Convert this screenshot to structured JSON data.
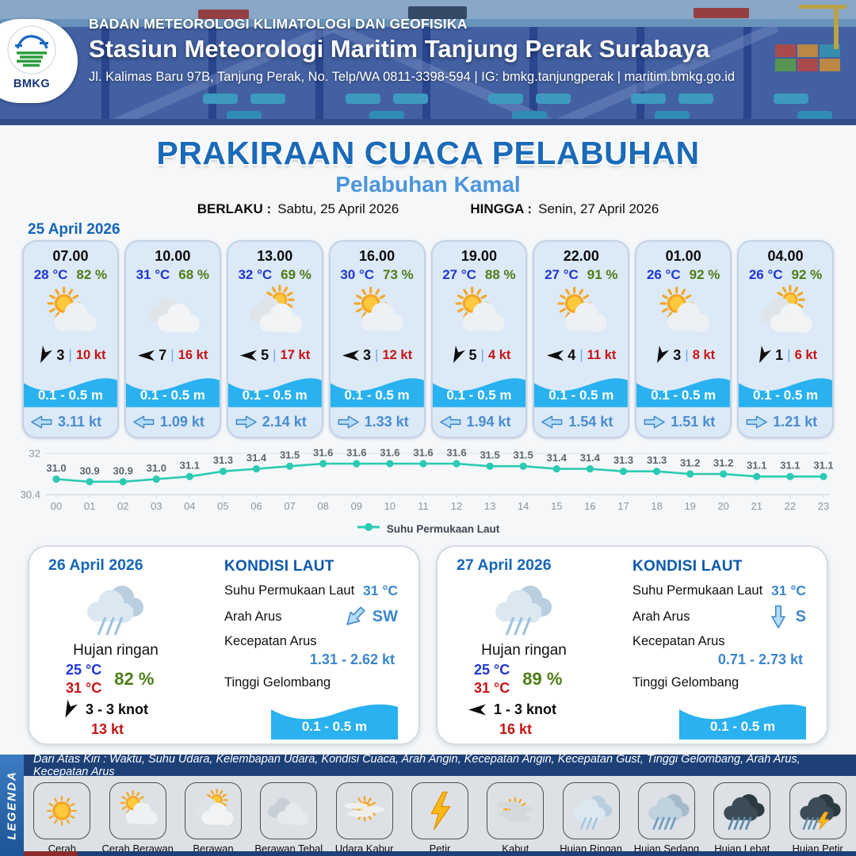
{
  "header": {
    "org": "BADAN METEOROLOGI KLIMATOLOGI DAN GEOFISIKA",
    "station": "Stasiun Meteorologi Maritim Tanjung Perak Surabaya",
    "address": "Jl. Kalimas Baru 97B, Tanjung Perak, No. Telp/WA 0811-3398-594 | IG: bmkg.tanjungperak | maritim.bmkg.go.id",
    "logo_text": "BMKG"
  },
  "title": {
    "main": "PRAKIRAAN CUACA PELABUHAN",
    "subtitle": "Pelabuhan Kamal",
    "berlaku_label": "BERLAKU :",
    "berlaku_value": "Sabtu, 25 April 2026",
    "hingga_label": "HINGGA :",
    "hingga_value": "Senin, 27 April 2026"
  },
  "forecast": {
    "date": "25 April 2026",
    "wind_separator": "|",
    "cards": [
      {
        "time": "07.00",
        "temp": "28 °C",
        "humidity": "82 %",
        "icon": "cerah-berawan",
        "wind_dir_deg": 115,
        "wind_num": "3",
        "wind_speed": "10 kt",
        "wave": "0.1 - 0.5 m",
        "current_dir": "left",
        "current": "3.11 kt"
      },
      {
        "time": "10.00",
        "temp": "31 °C",
        "humidity": "68 %",
        "icon": "berawan",
        "wind_dir_deg": 180,
        "wind_num": "7",
        "wind_speed": "16 kt",
        "wave": "0.1 - 0.5 m",
        "current_dir": "left",
        "current": "1.09 kt"
      },
      {
        "time": "13.00",
        "temp": "32 °C",
        "humidity": "69 %",
        "icon": "berawan-sun",
        "wind_dir_deg": 180,
        "wind_num": "5",
        "wind_speed": "17 kt",
        "wave": "0.1 - 0.5 m",
        "current_dir": "right",
        "current": "2.14 kt"
      },
      {
        "time": "16.00",
        "temp": "30 °C",
        "humidity": "73 %",
        "icon": "cerah-berawan",
        "wind_dir_deg": 180,
        "wind_num": "3",
        "wind_speed": "12 kt",
        "wave": "0.1 - 0.5 m",
        "current_dir": "right",
        "current": "1.33 kt"
      },
      {
        "time": "19.00",
        "temp": "27 °C",
        "humidity": "88 %",
        "icon": "cerah-berawan",
        "wind_dir_deg": 115,
        "wind_num": "5",
        "wind_speed": "4 kt",
        "wave": "0.1 - 0.5 m",
        "current_dir": "left",
        "current": "1.94 kt"
      },
      {
        "time": "22.00",
        "temp": "27 °C",
        "humidity": "91 %",
        "icon": "cerah-berawan",
        "wind_dir_deg": 180,
        "wind_num": "4",
        "wind_speed": "11 kt",
        "wave": "0.1 - 0.5 m",
        "current_dir": "left",
        "current": "1.54 kt"
      },
      {
        "time": "01.00",
        "temp": "26 °C",
        "humidity": "92 %",
        "icon": "cerah-berawan",
        "wind_dir_deg": 115,
        "wind_num": "3",
        "wind_speed": "8 kt",
        "wave": "0.1 - 0.5 m",
        "current_dir": "right",
        "current": "1.51 kt"
      },
      {
        "time": "04.00",
        "temp": "26 °C",
        "humidity": "92 %",
        "icon": "berawan-sun",
        "wind_dir_deg": 115,
        "wind_num": "1",
        "wind_speed": "6 kt",
        "wave": "0.1 - 0.5 m",
        "current_dir": "right",
        "current": "1.21 kt"
      }
    ]
  },
  "chart_data": {
    "type": "line",
    "x": [
      "00",
      "01",
      "02",
      "03",
      "04",
      "05",
      "06",
      "07",
      "08",
      "09",
      "10",
      "11",
      "12",
      "13",
      "14",
      "15",
      "16",
      "17",
      "18",
      "19",
      "20",
      "21",
      "22",
      "23"
    ],
    "series": [
      {
        "name": "Suhu Permukaan Laut",
        "values": [
          31.0,
          30.9,
          30.9,
          31.0,
          31.1,
          31.3,
          31.4,
          31.5,
          31.6,
          31.6,
          31.6,
          31.6,
          31.6,
          31.5,
          31.5,
          31.4,
          31.4,
          31.3,
          31.3,
          31.2,
          31.2,
          31.1,
          31.1,
          31.1
        ]
      }
    ],
    "ylim": [
      30.4,
      32
    ],
    "yticks": [
      32,
      30.4
    ],
    "line_color": "#2bcab2",
    "grid": true,
    "legend_position": "bottom"
  },
  "day_panels": [
    {
      "date": "26 April 2026",
      "condition": "Hujan ringan",
      "icon": "hujan-ringan",
      "temp_min": "25 °C",
      "temp_max": "31 °C",
      "humidity": "82 %",
      "wind_dir_deg": 115,
      "wind_range": "3  - 3 knot",
      "gust": "13 kt",
      "sea": {
        "title": "KONDISI LAUT",
        "sst_label": "Suhu Permukaan Laut",
        "sst": "31 °C",
        "arah_label": "Arah Arus",
        "arah": "SW",
        "arah_deg": 135,
        "kecepatan_label": "Kecepatan Arus",
        "kecepatan": "1.31  - 2.62 kt",
        "gelombang_label": "Tinggi Gelombang",
        "gelombang": "0.1 - 0.5 m"
      }
    },
    {
      "date": "27 April 2026",
      "condition": "Hujan ringan",
      "icon": "hujan-ringan",
      "temp_min": "25 °C",
      "temp_max": "31 °C",
      "humidity": "89 %",
      "wind_dir_deg": 180,
      "wind_range": "1  - 3 knot",
      "gust": "16 kt",
      "sea": {
        "title": "KONDISI LAUT",
        "sst_label": "Suhu Permukaan Laut",
        "sst": "31 °C",
        "arah_label": "Arah Arus",
        "arah": "S",
        "arah_deg": 90,
        "kecepatan_label": "Kecepatan Arus",
        "kecepatan": "0.71 - 2.73 kt",
        "gelombang_label": "Tinggi Gelombang",
        "gelombang": "0.1 - 0.5 m"
      }
    }
  ],
  "legend": {
    "sidebar": "LEGENDA",
    "note": "Dari Atas Kiri : Waktu, Suhu Udara, Kelembapan Udara, Kondisi Cuaca, Arah Angin, Kecepatan Angin, Kecepatan Gust, Tinggi Gelombang, Arah Arus, Kecepatan Arus",
    "items": [
      {
        "label": "Cerah",
        "icon": "cerah"
      },
      {
        "label": "Cerah Berawan",
        "icon": "cerah-berawan"
      },
      {
        "label": "Berawan",
        "icon": "berawan-sun"
      },
      {
        "label": "Berawan Tebal",
        "icon": "berawan-tebal"
      },
      {
        "label": "Udara Kabur",
        "icon": "udara-kabur"
      },
      {
        "label": "Petir",
        "icon": "petir"
      },
      {
        "label": "Kabut",
        "icon": "kabut"
      },
      {
        "label": "Hujan Ringan",
        "icon": "hujan-ringan"
      },
      {
        "label": "Hujan Sedang",
        "icon": "hujan-sedang"
      },
      {
        "label": "Hujan Lebat",
        "icon": "hujan-lebat"
      },
      {
        "label": "Hujan Petir",
        "icon": "hujan-petir"
      }
    ]
  },
  "colors": {
    "title_blue": "#1a6ab8",
    "subtitle_blue": "#4b95dc",
    "date_blue": "#1565b8",
    "temp_blue": "#2136d2",
    "humidity_green": "#4e7d16",
    "wind_red": "#c81414",
    "wave_cyan": "#29b1f0",
    "current_blue": "#498cd2",
    "chart_teal": "#2bcab2",
    "legend_bar_navy": "#1d4077",
    "legend_sidebar_blue": "#2f6db4"
  }
}
